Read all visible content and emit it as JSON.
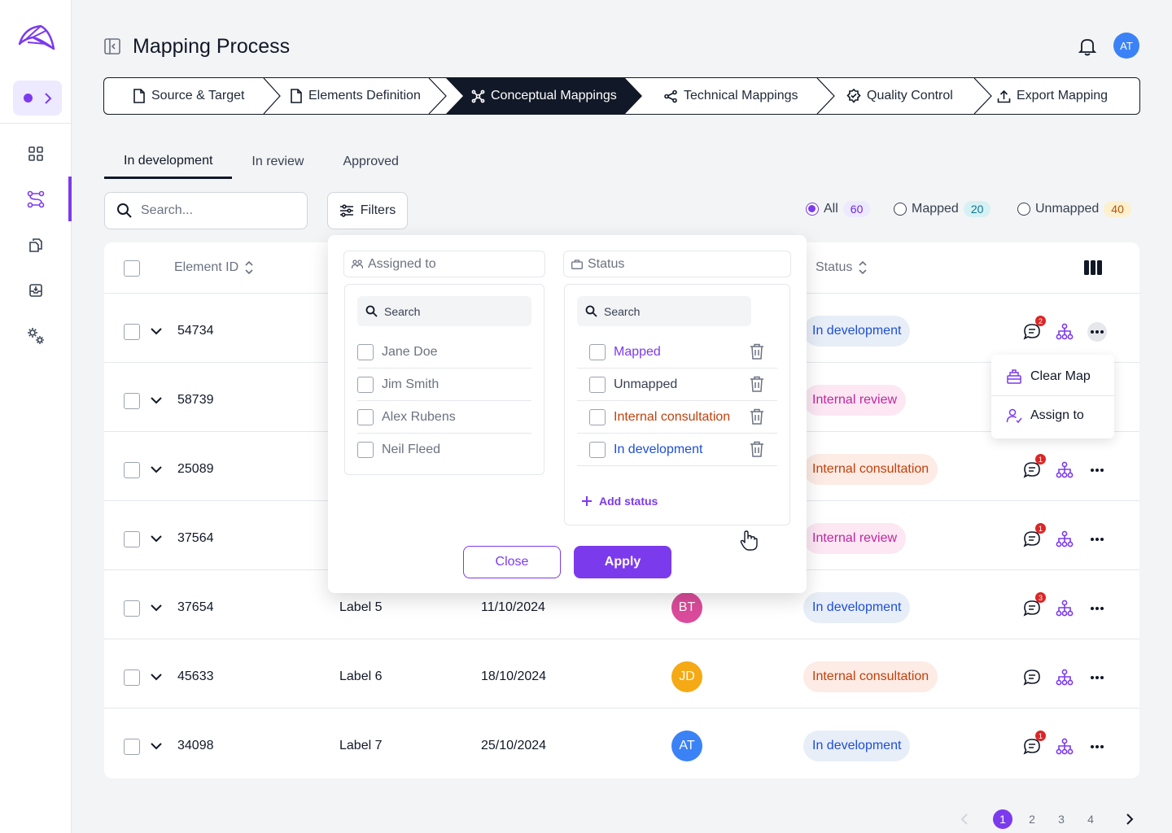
{
  "header": {
    "title": "Mapping Process",
    "avatar_initials": "AT"
  },
  "steps": [
    {
      "label": "Source & Target",
      "icon": "file-icon"
    },
    {
      "label": "Elements Definition",
      "icon": "file-icon"
    },
    {
      "label": "Conceptual Mappings",
      "icon": "network-icon",
      "active": true
    },
    {
      "label": "Technical Mappings",
      "icon": "share-icon"
    },
    {
      "label": "Quality Control",
      "icon": "badge-check-icon"
    },
    {
      "label": "Export Mapping",
      "icon": "upload-icon"
    }
  ],
  "tabs": [
    {
      "label": "In development",
      "active": true
    },
    {
      "label": "In review"
    },
    {
      "label": "Approved"
    }
  ],
  "search": {
    "placeholder": "Search..."
  },
  "filters_label": "Filters",
  "radio_filters": [
    {
      "label": "All",
      "count": "60",
      "selected": true
    },
    {
      "label": "Mapped",
      "count": "20"
    },
    {
      "label": "Unmapped",
      "count": "40"
    }
  ],
  "table": {
    "headers": {
      "element_id": "Element ID",
      "status": "Status"
    },
    "rows": [
      {
        "id": "54734",
        "status": "In development",
        "comments": "2"
      },
      {
        "id": "58739",
        "status": "Internal review",
        "comments": ""
      },
      {
        "id": "25089",
        "status": "Internal consultation",
        "comments": "1"
      },
      {
        "id": "37564",
        "status": "Internal review",
        "comments": "1"
      },
      {
        "id": "37654",
        "label": "Label 5",
        "date": "11/10/2024",
        "assignee": "BT",
        "status": "In development",
        "comments": "3"
      },
      {
        "id": "45633",
        "label": "Label 6",
        "date": "18/10/2024",
        "assignee": "JD",
        "status": "Internal consultation",
        "comments": ""
      },
      {
        "id": "34098",
        "label": "Label 7",
        "date": "25/10/2024",
        "assignee": "AT",
        "status": "In development",
        "comments": "1"
      }
    ]
  },
  "context_menu": {
    "clear_map": "Clear Map",
    "assign_to": "Assign to"
  },
  "filter_panel": {
    "assigned_to": {
      "title": "Assigned to",
      "search_placeholder": "Search",
      "options": [
        "Jane Doe",
        "Jim Smith",
        "Alex Rubens",
        "Neil Fleed"
      ]
    },
    "status": {
      "title": "Status",
      "search_placeholder": "Search",
      "options": [
        "Mapped",
        "Unmapped",
        "Internal consultation",
        "In development"
      ],
      "add_label": "Add status"
    },
    "close_label": "Close",
    "apply_label": "Apply"
  },
  "pagination": {
    "pages": [
      "1",
      "2",
      "3",
      "4"
    ],
    "current": "1"
  },
  "colors": {
    "accent": "#7c3aed",
    "dark": "#111827"
  }
}
